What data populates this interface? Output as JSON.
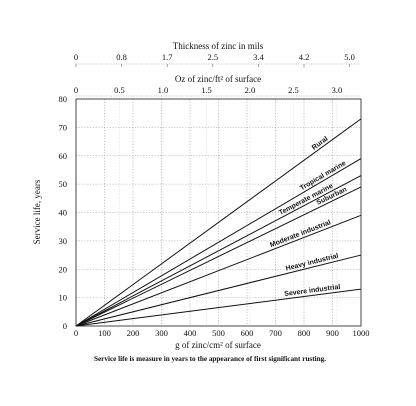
{
  "chart_data": {
    "type": "line",
    "top_axis_1": {
      "title": "Thickness of zinc in mils",
      "tick_labels": [
        "0",
        "0.8",
        "1.7",
        "2.5",
        "3.4",
        "4.2",
        "5.0"
      ]
    },
    "top_axis_2": {
      "title": "Oz of zinc/ft² of surface",
      "tick_labels": [
        "0",
        "0.5",
        "1.0",
        "1.5",
        "2.0",
        "2.5",
        "3.0"
      ],
      "tick_values_g_per_cm2": [
        0,
        152.6,
        305.2,
        457.8,
        610.4,
        763.0,
        915.6
      ]
    },
    "xlabel": "g of zinc/cm² of surface",
    "ylabel": "Service life, years",
    "xlim": [
      0,
      1000
    ],
    "ylim": [
      0,
      80
    ],
    "x_ticks": [
      0,
      100,
      200,
      300,
      400,
      500,
      600,
      700,
      800,
      900,
      1000
    ],
    "y_ticks": [
      0,
      10,
      20,
      30,
      40,
      50,
      60,
      70,
      80
    ],
    "grid": true,
    "series": [
      {
        "name": "Rural",
        "x": [
          0,
          1000
        ],
        "y": [
          0,
          73
        ]
      },
      {
        "name": "Tropical marine",
        "x": [
          0,
          1000
        ],
        "y": [
          0,
          59
        ]
      },
      {
        "name": "Temperate marine",
        "x": [
          0,
          1000
        ],
        "y": [
          0,
          53
        ]
      },
      {
        "name": "Suburban",
        "x": [
          0,
          1000
        ],
        "y": [
          0,
          49
        ]
      },
      {
        "name": "Moderate industrial",
        "x": [
          0,
          1000
        ],
        "y": [
          0,
          39
        ]
      },
      {
        "name": "Heavy industrial",
        "x": [
          0,
          1000
        ],
        "y": [
          0,
          25
        ]
      },
      {
        "name": "Severe industrial",
        "x": [
          0,
          1000
        ],
        "y": [
          0,
          13
        ]
      }
    ],
    "caption": "Service life is measure in years to the appearance of first significant rusting."
  }
}
